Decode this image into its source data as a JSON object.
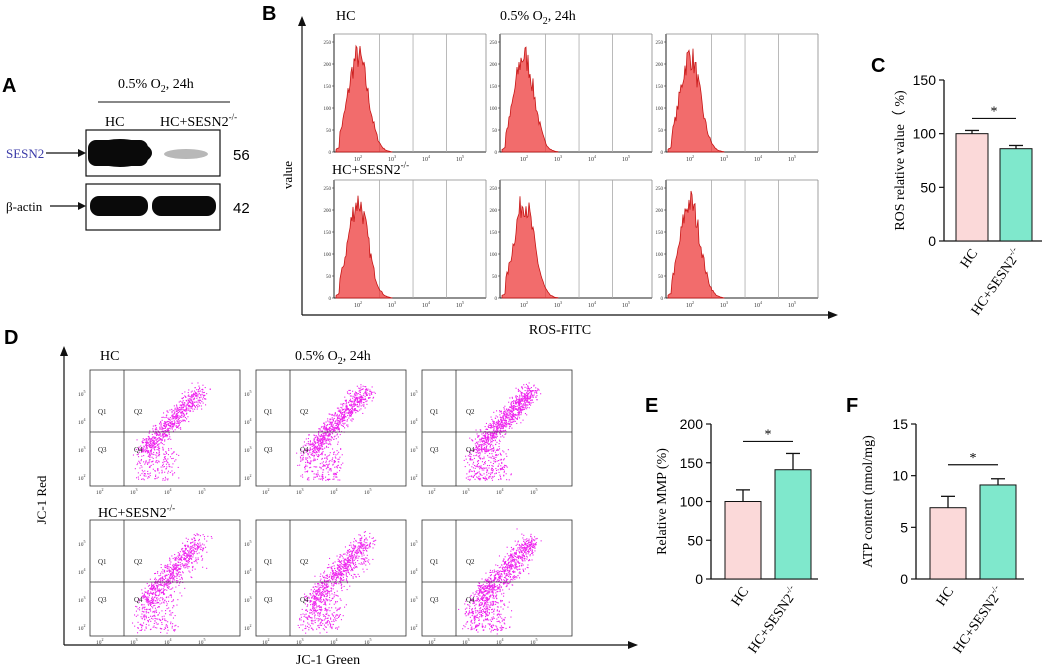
{
  "panels": {
    "A": "A",
    "B": "B",
    "C": "C",
    "D": "D",
    "E": "E",
    "F": "F"
  },
  "western_blot": {
    "condition_text": "0.5% O",
    "condition_sub": "2",
    "condition_suffix": ",  24h",
    "lane_labels": [
      "HC",
      "HC+SESN2"
    ],
    "lane_sup": "-/-",
    "rows": [
      {
        "label": "SESN2",
        "kda": "56",
        "label_color": "#3a3aa8"
      },
      {
        "label": "β-actin",
        "kda": "42",
        "label_color": "#111111"
      }
    ]
  },
  "flow_ros": {
    "group_labels": [
      "HC",
      "HC+SESN2"
    ],
    "group_sup": "-/-",
    "condition_text": "0.5% O",
    "condition_sub": "2",
    "condition_suffix": ", 24h",
    "y_label": "value",
    "x_label": "ROS-FITC",
    "hist_color": "#ee3b3b",
    "y_ticks": [
      "0",
      "50",
      "100",
      "150",
      "200",
      "250"
    ],
    "x_ticks": [
      {
        "base": "10",
        "exp": "2"
      },
      {
        "base": "10",
        "exp": "3"
      },
      {
        "base": "10",
        "exp": "4"
      },
      {
        "base": "10",
        "exp": "5"
      }
    ]
  },
  "flow_jc1": {
    "group_labels": [
      "HC",
      "HC+SESN2"
    ],
    "group_sup": "-/-",
    "condition_text": "0.5% O",
    "condition_sub": "2",
    "condition_suffix": ", 24h",
    "y_label": "JC-1 Red",
    "x_label": "JC-1 Green",
    "dot_color": "#ee22ee",
    "quadrants": [
      "Q1",
      "Q2",
      "Q3",
      "Q4"
    ],
    "tick_base": "10",
    "tick_exps": [
      "2",
      "3",
      "4",
      "5"
    ]
  },
  "colors": {
    "hc": "#fbd9d9",
    "ko": "#7fe8cc",
    "axis": "#111111"
  },
  "chart_data": [
    {
      "id": "C",
      "type": "bar",
      "categories": [
        "HC",
        "HC+SESN2"
      ],
      "category_sup": [
        "",
        "-/-"
      ],
      "values": [
        100,
        86
      ],
      "errors": [
        3,
        3
      ],
      "ylabel": "ROS relative value（ %)",
      "ylim": [
        0,
        150
      ],
      "yticks": [
        "0",
        "50",
        "100",
        "150"
      ],
      "significance": "*"
    },
    {
      "id": "E",
      "type": "bar",
      "categories": [
        "HC",
        "HC+SESN2"
      ],
      "category_sup": [
        "",
        "-/-"
      ],
      "values": [
        100,
        141
      ],
      "errors": [
        15,
        21
      ],
      "ylabel": "Relative MMP (%)",
      "ylim": [
        0,
        200
      ],
      "yticks": [
        "0",
        "50",
        "100",
        "150",
        "200"
      ],
      "significance": "*"
    },
    {
      "id": "F",
      "type": "bar",
      "categories": [
        "HC",
        "HC+SESN2"
      ],
      "category_sup": [
        "",
        "-/-"
      ],
      "values": [
        6.9,
        9.1
      ],
      "errors": [
        1.1,
        0.6
      ],
      "ylabel": "ATP content (nmol/mg)",
      "ylim": [
        0,
        15
      ],
      "yticks": [
        "0",
        "5",
        "10",
        "15"
      ],
      "significance": "*"
    }
  ]
}
